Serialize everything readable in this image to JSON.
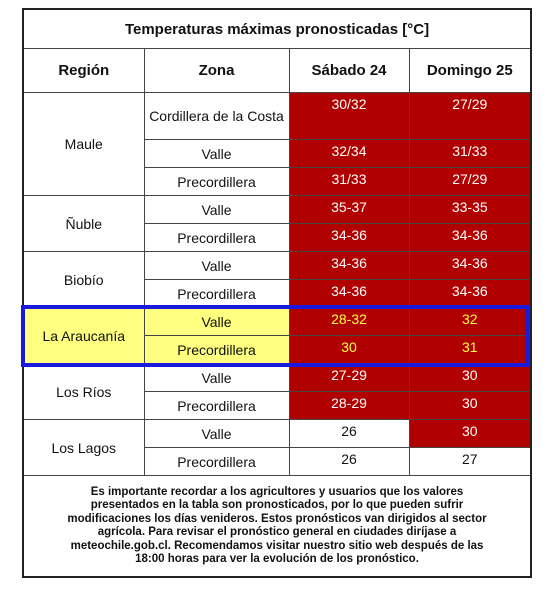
{
  "title": "Temperaturas máximas pronosticadas [°C]",
  "headers": [
    "Región",
    "Zona",
    "Sábado 24",
    "Domingo 25"
  ],
  "groups": [
    {
      "region": "Maule",
      "rows": [
        {
          "zone": "Cordillera de la Costa",
          "values": [
            "30/32",
            "27/29"
          ],
          "colors": [
            "#b00000",
            "#b00000"
          ]
        },
        {
          "zone": "Valle",
          "values": [
            "32/34",
            "31/33"
          ],
          "colors": [
            "#b00000",
            "#b00000"
          ]
        },
        {
          "zone": "Precordillera",
          "values": [
            "31/33",
            "27/29"
          ],
          "colors": [
            "#b00000",
            "#b00000"
          ]
        }
      ]
    },
    {
      "region": "Ñuble",
      "rows": [
        {
          "zone": "Valle",
          "values": [
            "35-37",
            "33-35"
          ],
          "colors": [
            "#b00000",
            "#b00000"
          ]
        },
        {
          "zone": "Precordillera",
          "values": [
            "34-36",
            "34-36"
          ],
          "colors": [
            "#b00000",
            "#b00000"
          ]
        }
      ]
    },
    {
      "region": "Biobío",
      "rows": [
        {
          "zone": "Valle",
          "values": [
            "34-36",
            "34-36"
          ],
          "colors": [
            "#b00000",
            "#b00000"
          ]
        },
        {
          "zone": "Precordillera",
          "values": [
            "34-36",
            "34-36"
          ],
          "colors": [
            "#b00000",
            "#b00000"
          ]
        }
      ]
    },
    {
      "region": "La Araucanía",
      "highlight": true,
      "rows": [
        {
          "zone": "Valle",
          "values": [
            "28-32",
            "32"
          ],
          "colors": [
            "#b00000",
            "#b00000"
          ]
        },
        {
          "zone": "Precordillera",
          "values": [
            "30",
            "31"
          ],
          "colors": [
            "#b00000",
            "#b00000"
          ]
        }
      ]
    },
    {
      "region": "Los Ríos",
      "rows": [
        {
          "zone": "Valle",
          "values": [
            "27-29",
            "30"
          ],
          "colors": [
            "#b00000",
            "#b00000"
          ]
        },
        {
          "zone": "Precordillera",
          "values": [
            "28-29",
            "30"
          ],
          "colors": [
            "#b00000",
            "#b00000"
          ]
        }
      ]
    },
    {
      "region": "Los Lagos",
      "rows": [
        {
          "zone": "Valle",
          "values": [
            "26",
            "30"
          ],
          "colors": [
            "#ffffff",
            "#b00000"
          ]
        },
        {
          "zone": "Precordillera",
          "values": [
            "26",
            "27"
          ],
          "colors": [
            "#ffffff",
            "#ffffff"
          ]
        }
      ]
    }
  ],
  "footer": [
    "Es importante recordar a los agricultores y usuarios que los valores",
    "presentados en la tabla son pronosticados, por lo que pueden sufrir",
    "modificaciones los días venideros. Estos pronósticos van dirigidos al sector",
    "agrícola. Para revisar el pronóstico general en ciudades diríjase a",
    "meteochile.gob.cl. Recomendamos visitar nuestro sitio web después de las",
    "18:00 horas para ver la evolución de los pronóstico."
  ]
}
